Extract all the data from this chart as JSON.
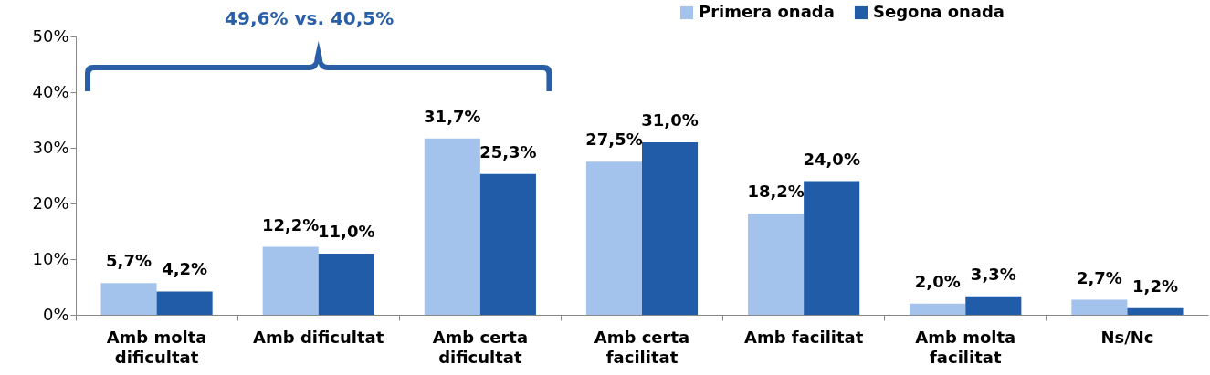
{
  "chart_data": {
    "type": "bar",
    "categories": [
      "Amb molta dificultat",
      "Amb dificultat",
      "Amb certa dificultat",
      "Amb certa facilitat",
      "Amb facilitat",
      "Amb molta facilitat",
      "Ns/Nc"
    ],
    "series": [
      {
        "name": "Primera onada",
        "color": "#a4c3ec",
        "values": [
          5.7,
          12.2,
          31.7,
          27.5,
          18.2,
          2.0,
          2.7
        ],
        "value_labels": [
          "5,7%",
          "12,2%",
          "31,7%",
          "27,5%",
          "18,2%",
          "2,0%",
          "2,7%"
        ]
      },
      {
        "name": "Segona onada",
        "color": "#215ca8",
        "values": [
          4.2,
          11.0,
          25.3,
          31.0,
          24.0,
          3.3,
          1.2
        ],
        "value_labels": [
          "4,2%",
          "11,0%",
          "25,3%",
          "31,0%",
          "24,0%",
          "3,3%",
          "1,2%"
        ]
      }
    ],
    "ylim": [
      0,
      50
    ],
    "yticks": [
      {
        "value": 0,
        "label": "0%"
      },
      {
        "value": 10,
        "label": "10%"
      },
      {
        "value": 20,
        "label": "20%"
      },
      {
        "value": 30,
        "label": "30%"
      },
      {
        "value": 40,
        "label": "40%"
      },
      {
        "value": 50,
        "label": "50%"
      }
    ],
    "annotations": [
      "49,6% vs. 40,5%"
    ],
    "grid": false,
    "legend": "top right"
  }
}
